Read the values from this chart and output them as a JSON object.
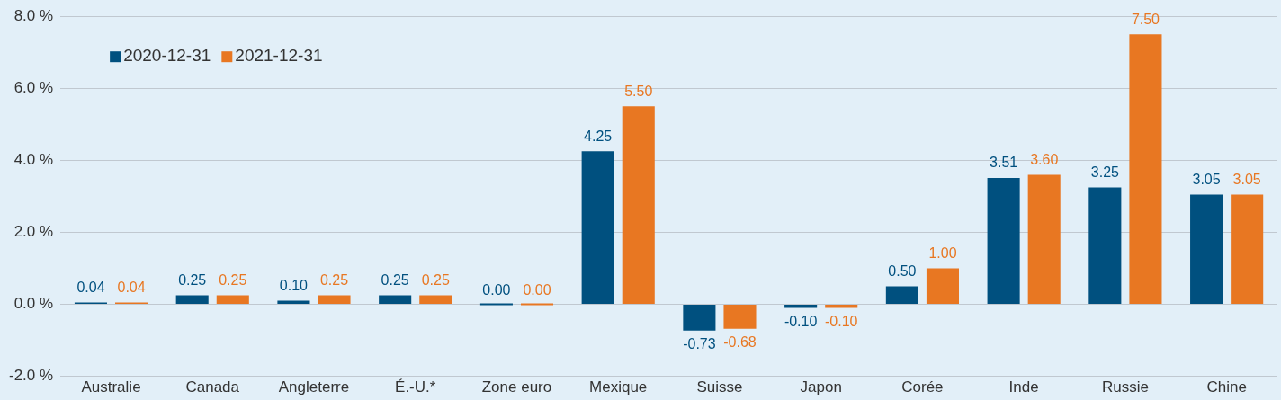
{
  "chart_data": {
    "type": "bar",
    "categories": [
      "Australie",
      "Canada",
      "Angleterre",
      "É.-U.*",
      "Zone euro",
      "Mexique",
      "Suisse",
      "Japon",
      "Corée",
      "Inde",
      "Russie",
      "Chine"
    ],
    "series": [
      {
        "name": "2020-12-31",
        "color": "#00507f",
        "values": [
          0.04,
          0.25,
          0.1,
          0.25,
          0.0,
          4.25,
          -0.73,
          -0.1,
          0.5,
          3.51,
          3.25,
          3.05
        ],
        "value_labels": [
          "0.04",
          "0.25",
          "0.10",
          "0.25",
          "0.00",
          "4.25",
          "-0.73",
          "-0.10",
          "0.50",
          "3.51",
          "3.25",
          "3.05"
        ]
      },
      {
        "name": "2021-12-31",
        "color": "#e87722",
        "values": [
          0.04,
          0.25,
          0.25,
          0.25,
          0.0,
          5.5,
          -0.68,
          -0.1,
          1.0,
          3.6,
          7.5,
          3.05
        ],
        "value_labels": [
          "0.04",
          "0.25",
          "0.25",
          "0.25",
          "0.00",
          "5.50",
          "-0.68",
          "-0.10",
          "1.00",
          "3.60",
          "7.50",
          "3.05"
        ]
      }
    ],
    "ylim": [
      -2,
      8
    ],
    "yticks": [
      {
        "value": -2,
        "label": "-2.0 %"
      },
      {
        "value": 0,
        "label": "0.0 %"
      },
      {
        "value": 2,
        "label": "2.0 %"
      },
      {
        "value": 4,
        "label": "4.0 %"
      },
      {
        "value": 6,
        "label": "6.0 %"
      },
      {
        "value": 8,
        "label": "8.0 %"
      }
    ],
    "grid": "y",
    "legend": "top left"
  }
}
